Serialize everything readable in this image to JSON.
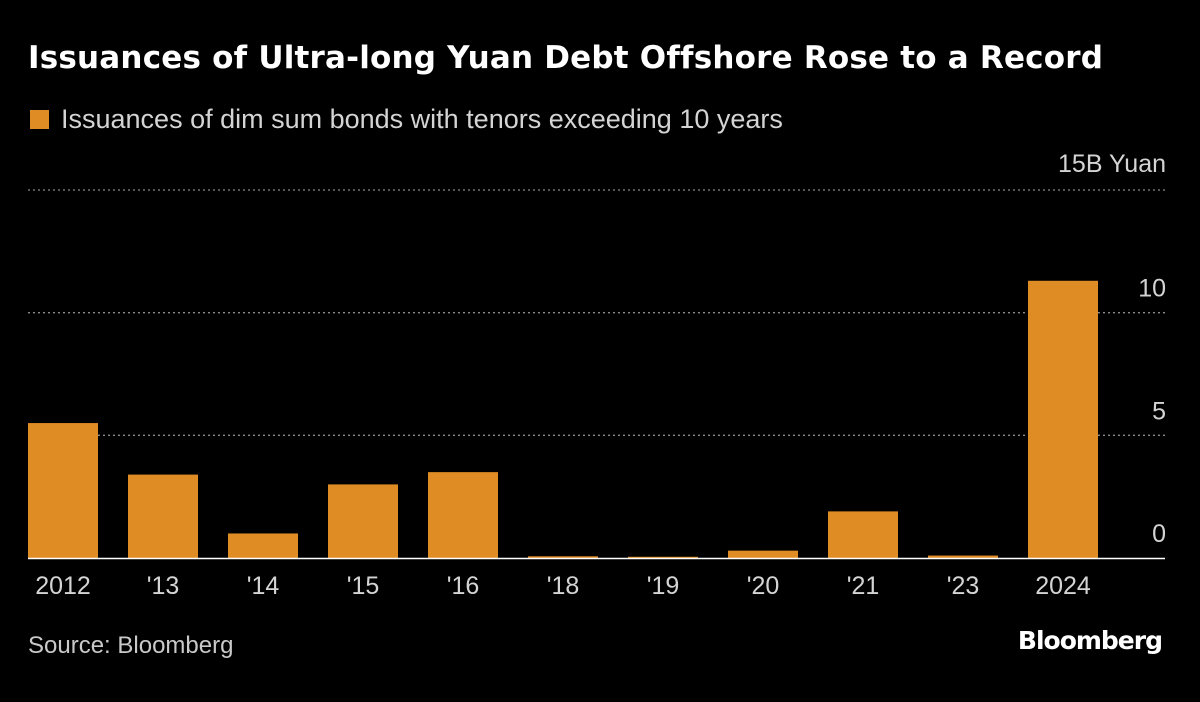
{
  "header": {
    "title": "Issuances of Ultra-long Yuan Debt Offshore Rose to a Record"
  },
  "legend": {
    "label": "Issuances of dim sum bonds with tenors exceeding 10 years"
  },
  "footer": {
    "source": "Source: Bloomberg",
    "brand": "Bloomberg"
  },
  "colors": {
    "bar": "#E08C25",
    "background": "#000000",
    "grid": "#8a8a8a",
    "axis": "#ffffff",
    "text": "#d4d4d4"
  },
  "chart_data": {
    "type": "bar",
    "title": "Issuances of Ultra-long Yuan Debt Offshore Rose to a Record",
    "categories": [
      "2012",
      "'13",
      "'14",
      "'15",
      "'16",
      "'18",
      "'19",
      "'20",
      "'21",
      "'23",
      "2024"
    ],
    "series": [
      {
        "name": "Issuances of dim sum bonds with tenors exceeding 10 years",
        "values": [
          5.5,
          3.4,
          1.0,
          3.0,
          3.5,
          0.07,
          0.05,
          0.3,
          1.9,
          0.1,
          11.3
        ]
      }
    ],
    "ylim": [
      0,
      15
    ],
    "yticks": [
      0,
      5,
      10,
      15
    ],
    "ytick_labels": [
      "0",
      "5",
      "10",
      "15B Yuan"
    ],
    "y_unit": "B Yuan",
    "grid": "dotted horizontal",
    "legend_position": "top-left"
  }
}
